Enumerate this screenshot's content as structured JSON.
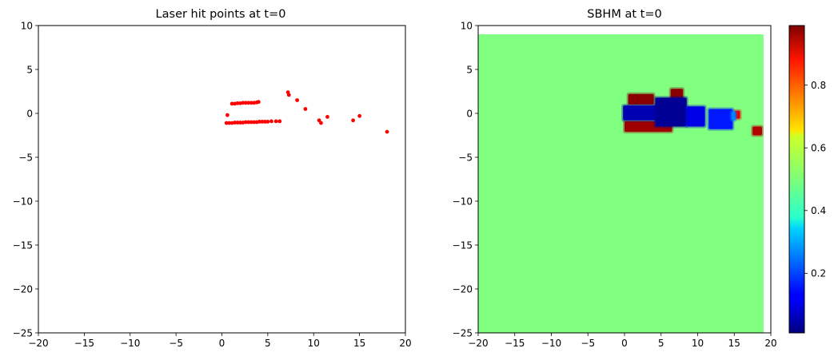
{
  "chart_data": [
    {
      "type": "scatter",
      "title": "Laser hit points at t=0",
      "xlabel": "",
      "ylabel": "",
      "xlim": [
        -20,
        20
      ],
      "ylim": [
        -25,
        10
      ],
      "xticks": [
        -20,
        -15,
        -10,
        -5,
        0,
        5,
        10,
        15,
        20
      ],
      "yticks": [
        10,
        5,
        0,
        -5,
        -10,
        -15,
        -20,
        -25
      ],
      "grid": false,
      "marker_color": "#ff0000",
      "points": [
        [
          0.5,
          -1.1
        ],
        [
          0.8,
          -1.1
        ],
        [
          1.1,
          -1.1
        ],
        [
          1.4,
          -1.05
        ],
        [
          1.7,
          -1.05
        ],
        [
          2.0,
          -1.05
        ],
        [
          2.3,
          -1.05
        ],
        [
          2.6,
          -1.0
        ],
        [
          2.9,
          -1.0
        ],
        [
          3.2,
          -1.0
        ],
        [
          3.5,
          -1.0
        ],
        [
          3.8,
          -1.0
        ],
        [
          4.1,
          -0.95
        ],
        [
          4.4,
          -0.95
        ],
        [
          4.7,
          -0.95
        ],
        [
          5.0,
          -0.95
        ],
        [
          5.4,
          -0.9
        ],
        [
          5.9,
          -0.9
        ],
        [
          6.3,
          -0.9
        ],
        [
          0.6,
          -0.2
        ],
        [
          1.1,
          1.1
        ],
        [
          1.4,
          1.1
        ],
        [
          1.7,
          1.15
        ],
        [
          2.0,
          1.15
        ],
        [
          2.3,
          1.2
        ],
        [
          2.6,
          1.2
        ],
        [
          2.9,
          1.2
        ],
        [
          3.2,
          1.2
        ],
        [
          3.5,
          1.2
        ],
        [
          3.8,
          1.25
        ],
        [
          4.0,
          1.3
        ],
        [
          7.2,
          2.4
        ],
        [
          7.3,
          2.1
        ],
        [
          8.2,
          1.5
        ],
        [
          9.1,
          0.5
        ],
        [
          10.6,
          -0.8
        ],
        [
          10.8,
          -1.1
        ],
        [
          11.5,
          -0.4
        ],
        [
          14.3,
          -0.8
        ],
        [
          15.0,
          -0.3
        ],
        [
          18.0,
          -2.1
        ]
      ]
    },
    {
      "type": "heatmap",
      "title": "SBHM at t=0",
      "xlabel": "",
      "ylabel": "",
      "xlim": [
        -20,
        20
      ],
      "ylim": [
        -25,
        10
      ],
      "xticks": [
        -20,
        -15,
        -10,
        -5,
        0,
        5,
        10,
        15,
        20
      ],
      "yticks": [
        10,
        5,
        0,
        -5,
        -10,
        -15,
        -20,
        -25
      ],
      "grid": false,
      "colormap": "jet",
      "background_value": 0.5,
      "background_extent": {
        "x": [
          -20,
          19
        ],
        "y": [
          -25,
          9
        ]
      },
      "colorbar": {
        "range": [
          0.01,
          0.99
        ],
        "ticks": [
          "0.2",
          "0.4",
          "0.6",
          "0.8"
        ],
        "tick_values": [
          0.2,
          0.4,
          0.6,
          0.8
        ]
      },
      "regions": [
        {
          "x": [
            0.5,
            4.0
          ],
          "y": [
            1.0,
            2.2
          ],
          "value": 0.99
        },
        {
          "x": [
            6.3,
            8.0
          ],
          "y": [
            1.3,
            2.8
          ],
          "value": 0.99
        },
        {
          "x": [
            0.0,
            6.5
          ],
          "y": [
            -2.1,
            -0.9
          ],
          "value": 0.97
        },
        {
          "x": [
            17.5,
            18.8
          ],
          "y": [
            -2.5,
            -1.5
          ],
          "value": 0.95
        },
        {
          "x": [
            15.0,
            15.8
          ],
          "y": [
            -0.6,
            0.3
          ],
          "value": 0.9
        },
        {
          "x": [
            -0.2,
            4.5
          ],
          "y": [
            -0.8,
            0.9
          ],
          "value": 0.05
        },
        {
          "x": [
            4.2,
            8.5
          ],
          "y": [
            -1.5,
            1.8
          ],
          "value": 0.02
        },
        {
          "x": [
            8.5,
            11.0
          ],
          "y": [
            -1.5,
            0.8
          ],
          "value": 0.1
        },
        {
          "x": [
            11.5,
            14.8
          ],
          "y": [
            -1.8,
            0.5
          ],
          "value": 0.15
        },
        {
          "x": [
            14.6,
            15.2
          ],
          "y": [
            -0.8,
            0.2
          ],
          "value": 0.25
        }
      ]
    }
  ]
}
